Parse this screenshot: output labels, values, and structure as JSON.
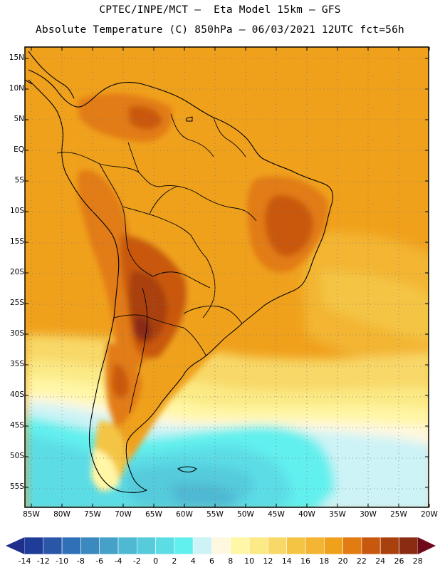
{
  "header": {
    "line1": "CPTEC/INPE/MCT –  Eta Model 15km – GFS",
    "line2": "Absolute Temperature (C) 850hPa – 06/03/2021 12UTC fct=56h"
  },
  "map": {
    "region": "South America",
    "extent_lon": [
      -86,
      -20
    ],
    "extent_lat": [
      -58,
      17
    ],
    "lat_ticks": [
      {
        "value": 15,
        "label": "15N"
      },
      {
        "value": 10,
        "label": "10N"
      },
      {
        "value": 5,
        "label": "5N"
      },
      {
        "value": 0,
        "label": "EQ"
      },
      {
        "value": -5,
        "label": "5S"
      },
      {
        "value": -10,
        "label": "10S"
      },
      {
        "value": -15,
        "label": "15S"
      },
      {
        "value": -20,
        "label": "20S"
      },
      {
        "value": -25,
        "label": "25S"
      },
      {
        "value": -30,
        "label": "30S"
      },
      {
        "value": -35,
        "label": "35S"
      },
      {
        "value": -40,
        "label": "40S"
      },
      {
        "value": -45,
        "label": "45S"
      },
      {
        "value": -50,
        "label": "50S"
      },
      {
        "value": -55,
        "label": "55S"
      }
    ],
    "lon_ticks": [
      {
        "value": -85,
        "label": "85W"
      },
      {
        "value": -80,
        "label": "80W"
      },
      {
        "value": -75,
        "label": "75W"
      },
      {
        "value": -70,
        "label": "70W"
      },
      {
        "value": -65,
        "label": "65W"
      },
      {
        "value": -60,
        "label": "60W"
      },
      {
        "value": -55,
        "label": "55W"
      },
      {
        "value": -50,
        "label": "50W"
      },
      {
        "value": -45,
        "label": "45W"
      },
      {
        "value": -40,
        "label": "40W"
      },
      {
        "value": -35,
        "label": "35W"
      },
      {
        "value": -30,
        "label": "30W"
      },
      {
        "value": -25,
        "label": "25W"
      },
      {
        "value": -20,
        "label": "20W"
      }
    ]
  },
  "colorbar": {
    "labels": [
      "-14",
      "-12",
      "-10",
      "-8",
      "-6",
      "-4",
      "-2",
      "0",
      "2",
      "4",
      "6",
      "8",
      "10",
      "12",
      "14",
      "16",
      "18",
      "20",
      "22",
      "24",
      "26",
      "28"
    ],
    "under_color": "#1e2f8c",
    "over_color": "#6e0a1a",
    "bins": [
      {
        "min": -14,
        "max": -12,
        "color": "#1f3d98"
      },
      {
        "min": -12,
        "max": -10,
        "color": "#2a56a8"
      },
      {
        "min": -10,
        "max": -8,
        "color": "#3070b6"
      },
      {
        "min": -8,
        "max": -6,
        "color": "#3a8ac0"
      },
      {
        "min": -6,
        "max": -4,
        "color": "#45a1c8"
      },
      {
        "min": -4,
        "max": -2,
        "color": "#4fb8d2"
      },
      {
        "min": -2,
        "max": 0,
        "color": "#55cbdc"
      },
      {
        "min": 0,
        "max": 2,
        "color": "#5cdde6"
      },
      {
        "min": 2,
        "max": 4,
        "color": "#62f0ee"
      },
      {
        "min": 4,
        "max": 6,
        "color": "#cdf3f6"
      },
      {
        "min": 6,
        "max": 8,
        "color": "#fff8e0"
      },
      {
        "min": 8,
        "max": 10,
        "color": "#fff6a6"
      },
      {
        "min": 10,
        "max": 12,
        "color": "#fbea85"
      },
      {
        "min": 12,
        "max": 14,
        "color": "#f8d868"
      },
      {
        "min": 14,
        "max": 16,
        "color": "#f4c545"
      },
      {
        "min": 16,
        "max": 18,
        "color": "#f3b533"
      },
      {
        "min": 18,
        "max": 20,
        "color": "#f0a11c"
      },
      {
        "min": 20,
        "max": 22,
        "color": "#e27c12"
      },
      {
        "min": 22,
        "max": 24,
        "color": "#c9580f"
      },
      {
        "min": 24,
        "max": 26,
        "color": "#a9410f"
      },
      {
        "min": 26,
        "max": 28,
        "color": "#8a2c12"
      }
    ]
  }
}
